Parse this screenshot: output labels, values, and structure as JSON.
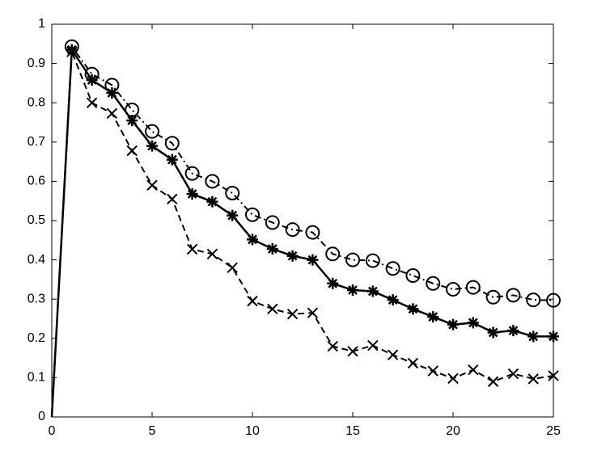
{
  "chart_data": {
    "type": "line",
    "x": [
      0,
      1,
      2,
      3,
      4,
      5,
      6,
      7,
      8,
      9,
      10,
      11,
      12,
      13,
      14,
      15,
      16,
      17,
      18,
      19,
      20,
      21,
      22,
      23,
      24,
      25
    ],
    "series": [
      {
        "color": "#000000",
        "marker": "circle",
        "dash": "dashdot",
        "values": [
          0,
          0.943,
          0.873,
          0.845,
          0.782,
          0.727,
          0.697,
          0.62,
          0.6,
          0.57,
          0.515,
          0.495,
          0.477,
          0.47,
          0.415,
          0.4,
          0.398,
          0.378,
          0.36,
          0.34,
          0.325,
          0.33,
          0.305,
          0.31,
          0.298,
          0.297
        ]
      },
      {
        "color": "#000000",
        "marker": "star",
        "dash": "solid",
        "values": [
          0,
          0.935,
          0.858,
          0.825,
          0.755,
          0.69,
          0.655,
          0.568,
          0.548,
          0.513,
          0.452,
          0.428,
          0.41,
          0.4,
          0.34,
          0.323,
          0.32,
          0.298,
          0.275,
          0.255,
          0.235,
          0.24,
          0.215,
          0.22,
          0.205,
          0.205
        ]
      },
      {
        "color": "#000000",
        "marker": "cross",
        "dash": "dashed",
        "values": [
          0,
          0.93,
          0.8,
          0.773,
          0.678,
          0.59,
          0.555,
          0.427,
          0.415,
          0.38,
          0.295,
          0.275,
          0.262,
          0.265,
          0.18,
          0.167,
          0.182,
          0.158,
          0.137,
          0.117,
          0.098,
          0.12,
          0.09,
          0.11,
          0.097,
          0.105
        ]
      }
    ],
    "xlim": [
      0,
      25
    ],
    "xticks": [
      0,
      5,
      10,
      15,
      20,
      25
    ],
    "ylim": [
      0,
      1
    ],
    "yticks": [
      0,
      0.1,
      0.2,
      0.3,
      0.4,
      0.5,
      0.6,
      0.7,
      0.8,
      0.9,
      1
    ],
    "grid": false
  }
}
